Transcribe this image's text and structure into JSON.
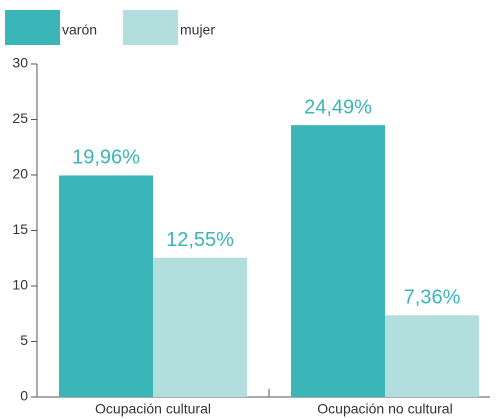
{
  "chart_data": {
    "type": "bar",
    "categories": [
      "Ocupación cultural",
      "Ocupación no cultural"
    ],
    "series": [
      {
        "name": "varón",
        "color": "#3ab5b8",
        "values": [
          19.96,
          24.49
        ],
        "value_labels": [
          "19,96%",
          "24,49%"
        ]
      },
      {
        "name": "mujer",
        "color": "#b2dedd",
        "values": [
          12.55,
          7.36
        ],
        "value_labels": [
          "12,55%",
          "7,36%"
        ]
      }
    ],
    "ylim": [
      0,
      30
    ],
    "yticks": [
      0,
      5,
      10,
      15,
      20,
      25,
      30
    ],
    "grid": false,
    "legend": "top-left"
  }
}
